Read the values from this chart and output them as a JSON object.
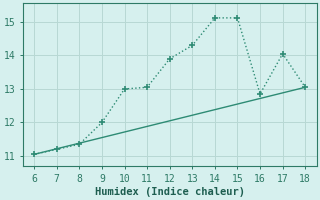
{
  "xlabel": "Humidex (Indice chaleur)",
  "xlim": [
    5.5,
    18.5
  ],
  "ylim": [
    10.7,
    15.55
  ],
  "yticks": [
    11,
    12,
    13,
    14,
    15
  ],
  "xticks": [
    6,
    7,
    8,
    9,
    10,
    11,
    12,
    13,
    14,
    15,
    16,
    17,
    18
  ],
  "line1_x": [
    6,
    7,
    8,
    9,
    10,
    11,
    12,
    13,
    14,
    15,
    16,
    17,
    18
  ],
  "line1_y": [
    11.05,
    11.2,
    11.35,
    12.0,
    13.0,
    13.05,
    13.9,
    14.3,
    15.12,
    15.12,
    12.85,
    14.05,
    13.05
  ],
  "line2_x": [
    6,
    18
  ],
  "line2_y": [
    11.05,
    13.05
  ],
  "line_color": "#2e8b74",
  "bg_color": "#d6f0ee",
  "grid_color": "#b8d8d4",
  "tick_color": "#2e7a66",
  "label_color": "#1e5e50",
  "marker": "+",
  "marker_size": 4,
  "marker_lw": 1.2,
  "line_width": 1.0,
  "xlabel_fontsize": 7.5,
  "tick_fontsize": 7.0
}
